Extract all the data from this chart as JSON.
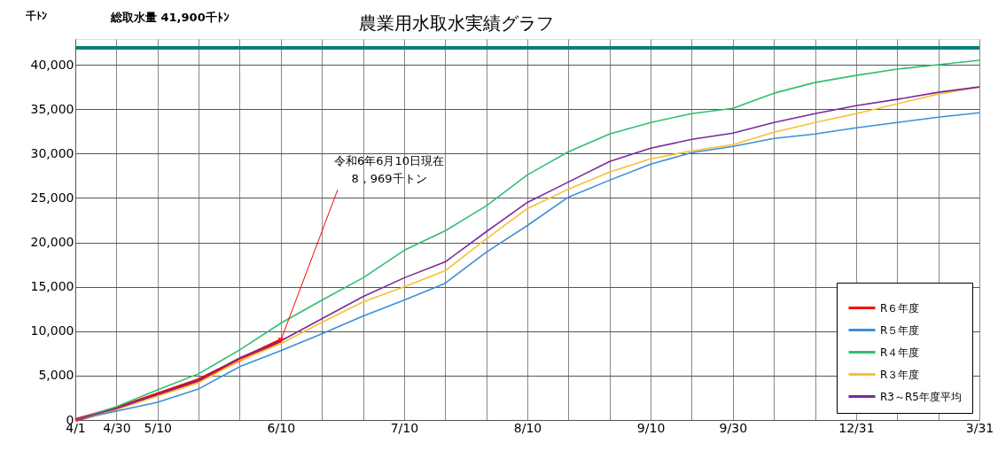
{
  "chart_data": {
    "type": "line",
    "title": "農業用水取水実績グラフ",
    "ylabel": "千ﾄﾝ",
    "categories": [
      "4/1",
      "4/30",
      "5/10",
      null,
      null,
      "6/10",
      null,
      null,
      "7/10",
      null,
      null,
      "8/10",
      null,
      null,
      "9/10",
      null,
      "9/30",
      null,
      null,
      "12/31",
      null,
      null,
      "3/31"
    ],
    "series": [
      {
        "name": "R６年度",
        "color": "#ff0000",
        "values": [
          0,
          1300,
          2900,
          4500,
          6800,
          8969,
          null,
          null,
          null,
          null,
          null,
          null,
          null,
          null,
          null,
          null,
          null,
          null,
          null,
          null,
          null,
          null,
          null
        ]
      },
      {
        "name": "R５年度",
        "color": "#3b8fd8",
        "values": [
          0,
          1000,
          2000,
          3500,
          6000,
          7800,
          9700,
          11700,
          13500,
          15400,
          18900,
          21900,
          25100,
          27000,
          28800,
          30100,
          30800,
          31700,
          32200,
          32900,
          33500,
          34100,
          34600
        ]
      },
      {
        "name": "R４年度",
        "color": "#2fbf71",
        "values": [
          0,
          1500,
          3400,
          5200,
          7900,
          10900,
          13500,
          16000,
          19100,
          21300,
          24100,
          27600,
          30200,
          32200,
          33500,
          34500,
          35100,
          36800,
          38000,
          38800,
          39500,
          40000,
          40500
        ]
      },
      {
        "name": "R３年度",
        "color": "#f5c12e",
        "values": [
          0,
          1200,
          2700,
          4200,
          6700,
          8600,
          11000,
          13300,
          15000,
          16800,
          20400,
          23800,
          26000,
          27900,
          29400,
          30300,
          31000,
          32400,
          33500,
          34500,
          35600,
          36700,
          37500
        ]
      },
      {
        "name": "R3～R5年度平均",
        "color": "#7a2a9a",
        "values": [
          0,
          1300,
          2900,
          4500,
          7000,
          8900,
          11400,
          13900,
          16000,
          17800,
          21200,
          24500,
          26800,
          29100,
          30600,
          31600,
          32300,
          33500,
          34500,
          35400,
          36100,
          36900,
          37500
        ]
      }
    ],
    "ylim": [
      0,
      42900
    ],
    "yticks": [
      0,
      {
        "value": 5000,
        "label": "5,000"
      },
      {
        "value": 10000,
        "label": "10,000"
      },
      {
        "value": 15000,
        "label": "15,000"
      },
      {
        "value": 20000,
        "label": "20,000"
      },
      {
        "value": 25000,
        "label": "25,000"
      },
      {
        "value": 30000,
        "label": "30,000"
      },
      {
        "value": 35000,
        "label": "35,000"
      },
      {
        "value": 40000,
        "label": "40,000"
      }
    ],
    "ref_lines": [
      {
        "axis": "y",
        "value": 41900,
        "label": "総取水量 41,900千ﾄﾝ",
        "color": "#008080"
      }
    ],
    "annotations": [
      {
        "text": "令和6年6月10日現在\n8，969千トン",
        "x": "6/10",
        "y": 8969
      }
    ],
    "grid": true,
    "legend": "bottom right",
    "marker": "none",
    "line_style": "solid"
  }
}
